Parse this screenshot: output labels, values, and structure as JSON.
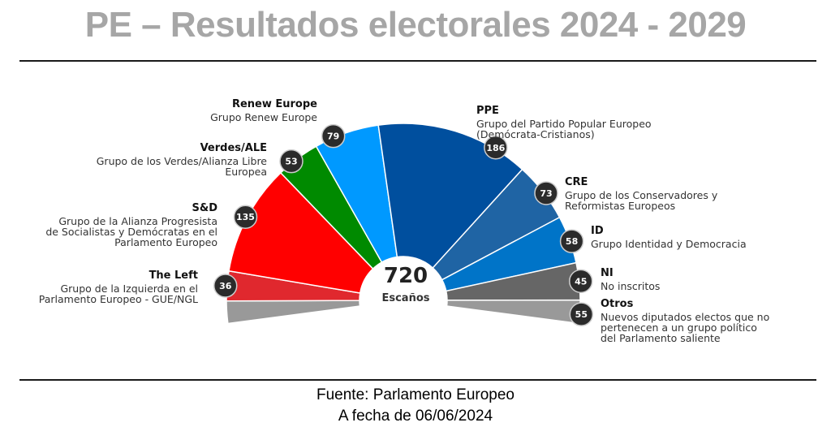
{
  "title": "PE – Resultados electorales 2024 - 2029",
  "footer": {
    "source": "Fuente: Parlamento Europeo",
    "date": "A fecha de 06/06/2024"
  },
  "chart_data": {
    "type": "pie",
    "subtype": "parliament-hemicycle",
    "title": "PE – Resultados electorales 2024 - 2029",
    "total": 720,
    "total_label": "720",
    "center_label": "Escaños",
    "groups": [
      {
        "key": "the_left",
        "abbr": "The Left",
        "name": "Grupo de la Izquierda en el\nParlamento Europeo - GUE/NGL",
        "seats": 36,
        "color": "#e0282e"
      },
      {
        "key": "sd",
        "abbr": "S&D",
        "name": "Grupo de la Alianza Progresista\nde Socialistas y Demócratas en el\nParlamento Europeo",
        "seats": 135,
        "color": "#ff0000"
      },
      {
        "key": "verdes",
        "abbr": "Verdes/ALE",
        "name": "Grupo de los Verdes/Alianza Libre\nEuropea",
        "seats": 53,
        "color": "#008a00"
      },
      {
        "key": "renew",
        "abbr": "Renew Europe",
        "name": "Grupo Renew Europe",
        "seats": 79,
        "color": "#0099ff"
      },
      {
        "key": "ppe",
        "abbr": "PPE",
        "name": "Grupo del Partido Popular Europeo\n(Demócrata-Cristianos)",
        "seats": 186,
        "color": "#004f9e"
      },
      {
        "key": "cre",
        "abbr": "CRE",
        "name": "Grupo de los Conservadores y\nReformistas Europeos",
        "seats": 73,
        "color": "#1f64a4"
      },
      {
        "key": "id",
        "abbr": "ID",
        "name": "Grupo Identidad y Democracia",
        "seats": 58,
        "color": "#0074c8"
      },
      {
        "key": "ni",
        "abbr": "NI",
        "name": "No inscritos",
        "seats": 45,
        "color": "#666666"
      },
      {
        "key": "otros",
        "abbr": "Otros",
        "name": "Nuevos diputados electos que no\npertenecen a un grupo político\ndel Parlamento saliente",
        "seats": 55,
        "color": "#999999"
      }
    ],
    "badge_color": "#2b2b2b",
    "badge_text_color": "#ffffff"
  }
}
